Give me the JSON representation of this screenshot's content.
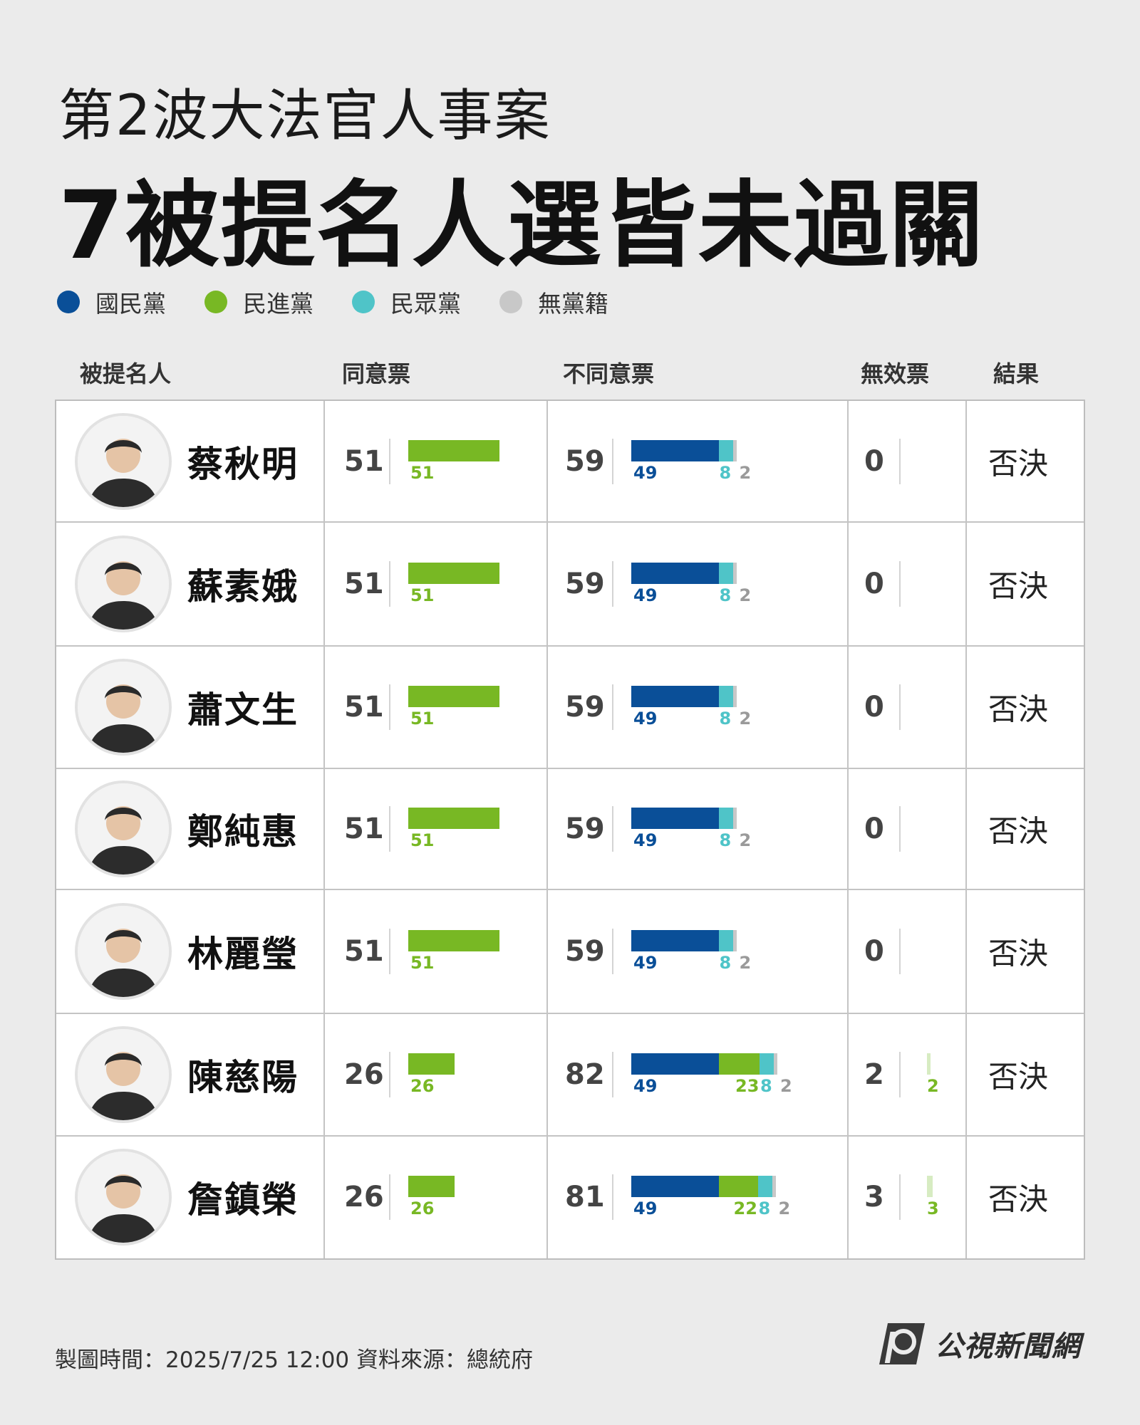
{
  "header": {
    "subtitle": "第2波大法官人事案",
    "title": "7被提名人選皆未過關"
  },
  "legend": [
    {
      "label": "國民黨",
      "color": "#0a4f98"
    },
    {
      "label": "民進黨",
      "color": "#78b824"
    },
    {
      "label": "民眾黨",
      "color": "#4fc4c8"
    },
    {
      "label": "無黨籍",
      "color": "#c8c8c8"
    }
  ],
  "columns": {
    "nominee": "被提名人",
    "approve": "同意票",
    "disapprove": "不同意票",
    "invalid": "無效票",
    "result": "結果"
  },
  "colors": {
    "kmt": "#0a4f98",
    "dpp": "#78b824",
    "tpp": "#4fc4c8",
    "ind": "#c8c8c8",
    "invalid_bar": "#d7ecc2"
  },
  "chart_data": {
    "type": "bar",
    "categories": [
      "蔡秋明",
      "蘇素娥",
      "蕭文生",
      "鄭純惠",
      "林麗瑩",
      "陳慈陽",
      "詹鎮榮"
    ],
    "approve": {
      "total": [
        51,
        51,
        51,
        51,
        51,
        26,
        26
      ],
      "dpp": [
        51,
        51,
        51,
        51,
        51,
        26,
        26
      ]
    },
    "disapprove": {
      "total": [
        59,
        59,
        59,
        59,
        59,
        82,
        81
      ],
      "kmt": [
        49,
        49,
        49,
        49,
        49,
        49,
        49
      ],
      "dpp": [
        0,
        0,
        0,
        0,
        0,
        23,
        22
      ],
      "tpp": [
        8,
        8,
        8,
        8,
        8,
        8,
        8
      ],
      "ind": [
        2,
        2,
        2,
        2,
        2,
        2,
        2
      ]
    },
    "invalid": {
      "total": [
        0,
        0,
        0,
        0,
        0,
        2,
        3
      ],
      "dpp": [
        0,
        0,
        0,
        0,
        0,
        2,
        3
      ]
    },
    "result": [
      "否決",
      "否決",
      "否決",
      "否決",
      "否決",
      "否決",
      "否決"
    ]
  },
  "footer": {
    "text": "製圖時間：2025/7/25  12:00    資料來源：總統府",
    "logo_text": "公視新聞網"
  }
}
